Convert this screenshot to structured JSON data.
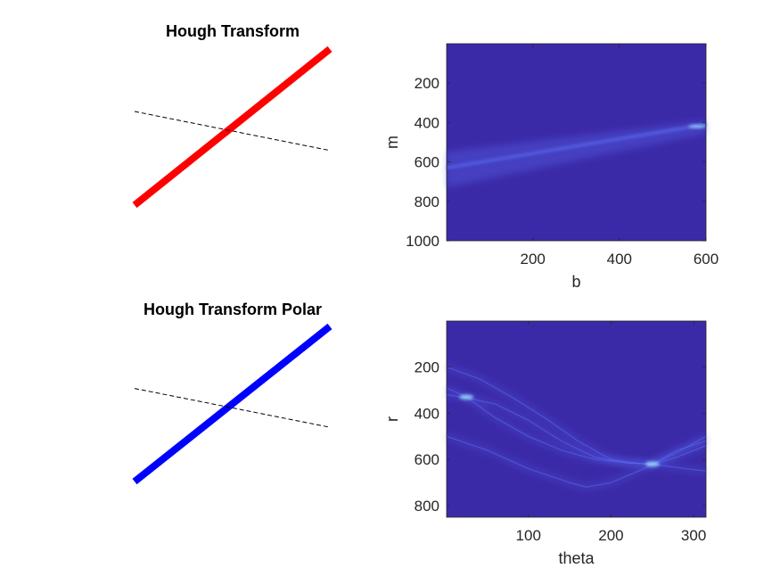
{
  "colors": {
    "background": "#ffffff",
    "heatmap_bg": "#3b2aa8",
    "heatmap_line": "#5a6af0",
    "heatmap_peak": "#9fe8ff",
    "line_top": "#ff0000",
    "line_bottom": "#0000ff",
    "dashed": "#000000"
  },
  "chart_data": [
    {
      "type": "line",
      "title": "Hough Transform",
      "series": [
        {
          "style": "thick-solid",
          "color": "#ff0000",
          "x": [
            0,
            1
          ],
          "y": [
            0,
            1
          ]
        },
        {
          "style": "dashed",
          "color": "#000000",
          "x": [
            0,
            1
          ],
          "y": [
            0.6,
            0.35
          ]
        }
      ],
      "axis_visible": false
    },
    {
      "type": "heatmap",
      "title": "",
      "xlabel": "b",
      "ylabel": "m",
      "xlim": [
        1,
        600
      ],
      "ylim": [
        1000,
        1
      ],
      "y_reversed": true,
      "xticks": [
        "200",
        "400",
        "600"
      ],
      "yticks": [
        "200",
        "400",
        "600",
        "800",
        "1000"
      ],
      "xtick_values": [
        200,
        400,
        600
      ],
      "ytick_values": [
        200,
        400,
        600,
        800,
        1000
      ],
      "band": {
        "x": [
          1,
          600
        ],
        "y": [
          630,
          410
        ]
      },
      "peak": {
        "b": 580,
        "m": 420
      }
    },
    {
      "type": "line",
      "title": "Hough Transform Polar",
      "series": [
        {
          "style": "thick-solid",
          "color": "#0000ff",
          "x": [
            0,
            1
          ],
          "y": [
            0,
            1
          ]
        },
        {
          "style": "dashed",
          "color": "#000000",
          "x": [
            0,
            1
          ],
          "y": [
            0.6,
            0.35
          ]
        }
      ],
      "axis_visible": false
    },
    {
      "type": "heatmap",
      "title": "",
      "xlabel": "theta",
      "ylabel": "r",
      "xlim": [
        1,
        315
      ],
      "ylim": [
        850,
        1
      ],
      "y_reversed": true,
      "xticks": [
        "100",
        "200",
        "300"
      ],
      "yticks": [
        "200",
        "400",
        "600",
        "800"
      ],
      "xtick_values": [
        100,
        200,
        300
      ],
      "ytick_values": [
        200,
        400,
        600,
        800
      ],
      "curves": [
        {
          "x": [
            1,
            25,
            60,
            100,
            140,
            180,
            220,
            250,
            280,
            315
          ],
          "y": [
            290,
            330,
            420,
            500,
            560,
            600,
            615,
            620,
            590,
            540
          ]
        },
        {
          "x": [
            1,
            40,
            80,
            120,
            160,
            200,
            240,
            250,
            280,
            315
          ],
          "y": [
            200,
            250,
            330,
            420,
            520,
            600,
            620,
            620,
            570,
            500
          ]
        },
        {
          "x": [
            1,
            20,
            60,
            100,
            140,
            180,
            220,
            250,
            290,
            315
          ],
          "y": [
            320,
            330,
            360,
            430,
            520,
            590,
            615,
            620,
            640,
            650
          ]
        },
        {
          "x": [
            1,
            50,
            100,
            150,
            170,
            200,
            240,
            250,
            280,
            315
          ],
          "y": [
            500,
            560,
            640,
            700,
            720,
            700,
            640,
            620,
            560,
            520
          ]
        }
      ],
      "peaks": [
        {
          "theta": 25,
          "r": 330
        },
        {
          "theta": 250,
          "r": 620
        }
      ]
    }
  ]
}
